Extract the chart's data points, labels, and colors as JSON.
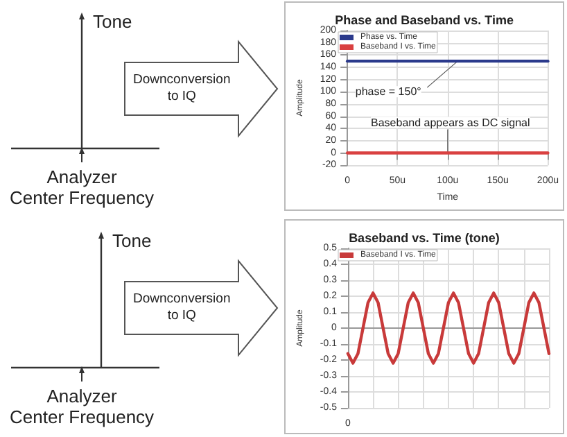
{
  "chart_data": [
    {
      "type": "other",
      "annotations": [
        "Tone",
        "Analyzer\nCenter Frequency",
        "Downconversion\nto IQ"
      ]
    },
    {
      "type": "line",
      "title": "Phase and Baseband vs. Time",
      "xlabel": "Time",
      "ylabel": "Amplitude",
      "x": [
        0,
        200
      ],
      "xlim": [
        0,
        200
      ],
      "xticks": [
        {
          "value": 0,
          "label": "0"
        },
        {
          "value": 50,
          "label": "50u"
        },
        {
          "value": 100,
          "label": "100u"
        },
        {
          "value": 150,
          "label": "150u"
        },
        {
          "value": 200,
          "label": "200u"
        }
      ],
      "ylim": [
        -20,
        200
      ],
      "yticks": [
        -20,
        0,
        20,
        40,
        60,
        80,
        100,
        120,
        140,
        160,
        180,
        200
      ],
      "series": [
        {
          "name": "Phase vs. Time",
          "color": "#2b3a8c",
          "values": [
            150,
            150
          ]
        },
        {
          "name": "Baseband I vs. Time",
          "color": "#d94040",
          "values": [
            0,
            0
          ]
        }
      ],
      "annotations": [
        {
          "text": "phase = 150°",
          "x": 110,
          "y": 150
        },
        {
          "text": "Baseband appears as DC signal",
          "x": 100,
          "y": 0
        }
      ],
      "grid": true,
      "legend": "top left",
      "marker": "none"
    },
    {
      "type": "other",
      "annotations": [
        "Tone",
        "Analyzer\nCenter Frequency",
        "Downconversion\nto IQ"
      ]
    },
    {
      "type": "line",
      "title": "Baseband vs. Time (tone)",
      "ylabel": "Amplitude",
      "categories": [
        "0",
        null,
        null,
        null,
        null,
        null,
        null,
        null,
        null,
        null,
        null,
        null,
        null,
        null,
        null,
        null,
        null,
        null,
        null,
        null,
        null,
        null,
        null,
        null,
        null,
        null,
        null,
        null,
        null,
        null,
        null,
        null,
        null,
        null,
        null,
        null,
        null,
        null,
        null,
        null,
        null
      ],
      "ylim": [
        -0.5,
        0.5
      ],
      "yticks": [
        -0.5,
        -0.4,
        -0.3,
        -0.2,
        -0.1,
        0,
        0.1,
        0.2,
        0.3,
        0.4,
        0.5
      ],
      "series": [
        {
          "name": "Baseband I vs. Time",
          "color": "#c83a3a",
          "values": [
            -0.16,
            -0.22,
            -0.16,
            0,
            0.16,
            0.22,
            0.16,
            0,
            -0.16,
            -0.22,
            -0.16,
            0,
            0.16,
            0.22,
            0.16,
            0,
            -0.16,
            -0.22,
            -0.16,
            0,
            0.16,
            0.22,
            0.16,
            0,
            -0.16,
            -0.22,
            -0.16,
            0,
            0.16,
            0.22,
            0.16,
            0,
            -0.16,
            -0.22,
            -0.16,
            0,
            0.16,
            0.22,
            0.16,
            0,
            -0.16
          ]
        }
      ],
      "grid": true,
      "legend": "top left",
      "marker": "none"
    }
  ]
}
